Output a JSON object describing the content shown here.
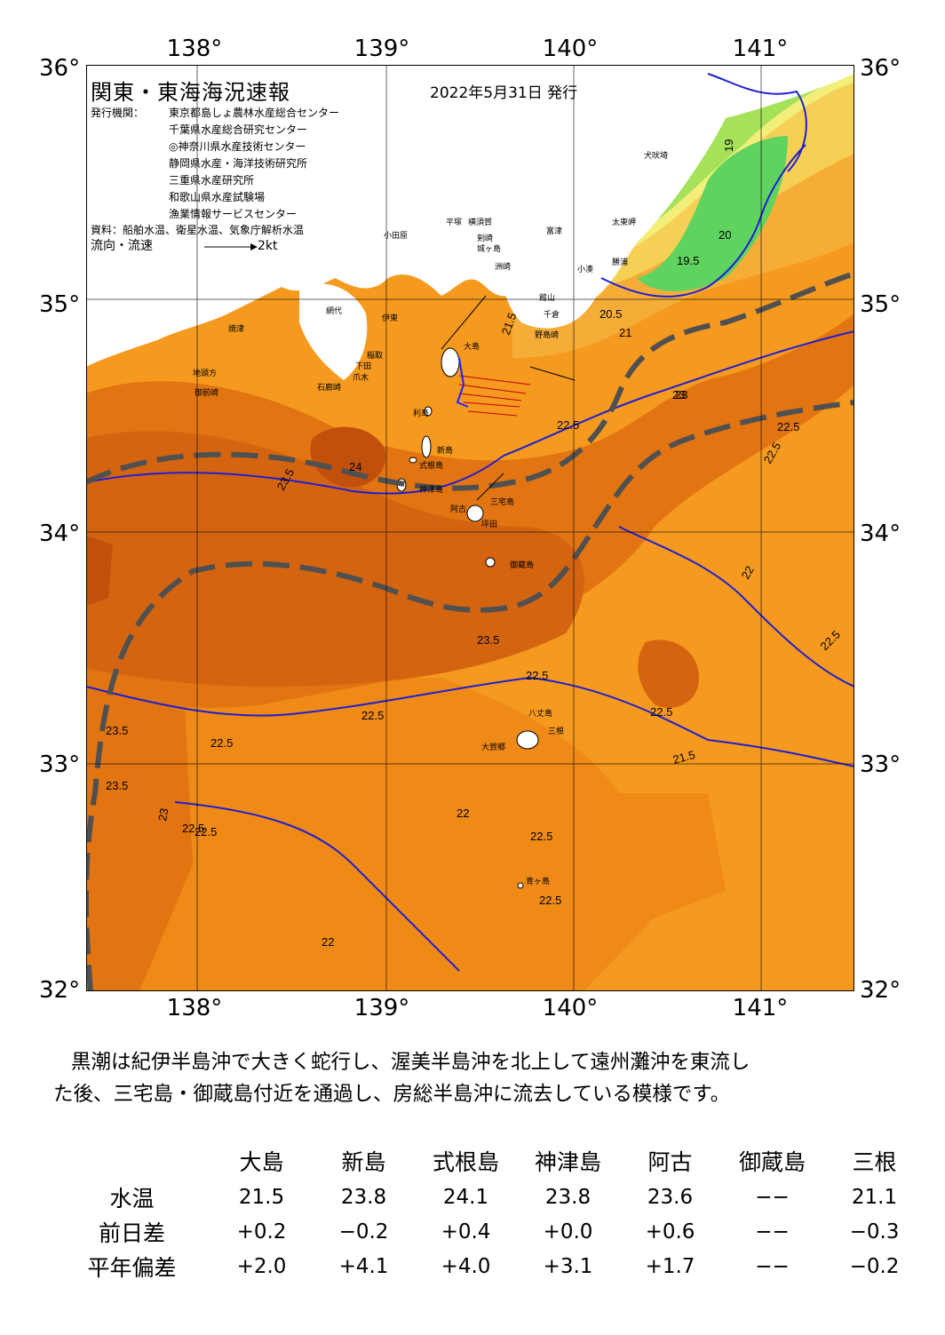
{
  "map": {
    "title": "関東・東海海況速報",
    "date": "2022年5月31日 発行",
    "publisher_label": "発行機関：",
    "publishers": [
      "東京都島しょ農林水産総合センター",
      "千葉県水産総合研究センター",
      "◎神奈川県水産技術センター",
      "静岡県水産・海洋技術研究所",
      "三重県水産研究所",
      "和歌山県水産試験場",
      "漁業情報サービスセンター"
    ],
    "sources": "資料：船舶水温、衛星水温、気象庁解析水温",
    "flow_label": "流向・流速",
    "flow_scale": "2kt",
    "lon_labels": [
      "138°",
      "139°",
      "140°",
      "141°"
    ],
    "lat_labels": [
      "36°",
      "35°",
      "34°",
      "33°",
      "32°"
    ],
    "place_labels": [
      "犬吠埼",
      "太東岬",
      "勝浦",
      "小湊",
      "館山",
      "千倉",
      "野島崎",
      "富津",
      "横須賀",
      "平塚",
      "小田原",
      "城ヶ島",
      "剣崎",
      "洲崎",
      "伊東",
      "石廊崎",
      "下田",
      "爪木",
      "網代",
      "稲取",
      "焼津",
      "御前崎",
      "地頭方",
      "大島",
      "利島",
      "新島",
      "式根島",
      "神津島",
      "三宅島",
      "阿古",
      "坪田",
      "御蔵島",
      "八丈島",
      "大賀郷",
      "三根",
      "青ヶ島"
    ],
    "isotherm_labels": [
      "19",
      "19.5",
      "20",
      "20.5",
      "21",
      "21.5",
      "22",
      "22.5",
      "23",
      "23.5",
      "24"
    ],
    "colors": {
      "t195": "#5fd35f",
      "t20": "#a6e15a",
      "t205": "#f3ee7a",
      "t21": "#f6cf55",
      "t215": "#f5ad38",
      "t22": "#f59a1f",
      "t225": "#ef8a17",
      "t23": "#e27512",
      "t235": "#d56410",
      "t24": "#c2500d",
      "land": "#ffffff",
      "isotherm": "#1f1fd0",
      "kuroshio_axis": "#505050",
      "grid": "#000000"
    }
  },
  "summary": {
    "line1": "黒潮は紀伊半島沖で大きく蛇行し、渥美半島沖を北上して遠州灘沖を東流し",
    "line2": "た後、三宅島・御蔵島付近を通過し、房総半島沖に流去している模様です。"
  },
  "stats_table": {
    "columns": [
      "大島",
      "新島",
      "式根島",
      "神津島",
      "阿古",
      "御蔵島",
      "三根"
    ],
    "rows": [
      {
        "label": "水温",
        "values": [
          "21.5",
          "23.8",
          "24.1",
          "23.8",
          "23.6",
          "−−",
          "21.1"
        ]
      },
      {
        "label": "前日差",
        "values": [
          "+0.2",
          "−0.2",
          "+0.4",
          "+0.0",
          "+0.6",
          "−−",
          "−0.3"
        ]
      },
      {
        "label": "平年偏差",
        "values": [
          "+2.0",
          "+4.1",
          "+4.0",
          "+3.1",
          "+1.7",
          "−−",
          "−0.2"
        ]
      }
    ]
  }
}
